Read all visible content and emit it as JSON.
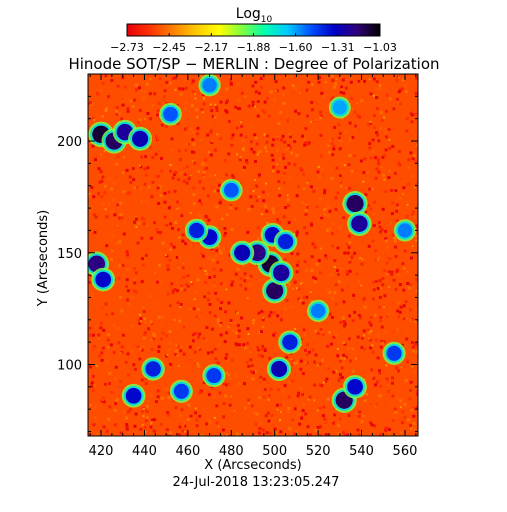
{
  "figure": {
    "title": "Hinode SOT/SP − MERLIN : Degree of Polarization",
    "timestamp": "24-Jul-2018 13:23:05.247"
  },
  "colorbar": {
    "label_base": "Log",
    "label_sub": "10",
    "ticks": [
      "−2.73",
      "−2.45",
      "−2.17",
      "−1.88",
      "−1.60",
      "−1.31",
      "−1.03"
    ],
    "range": [
      -2.73,
      -1.03
    ],
    "colormap": [
      "#e8000b",
      "#ff3300",
      "#ff8000",
      "#ffc800",
      "#ffff00",
      "#80ff40",
      "#00ffb0",
      "#00c8ff",
      "#0050ff",
      "#0000c8",
      "#30007a",
      "#000000"
    ]
  },
  "chart_data": {
    "type": "heatmap",
    "title": "Hinode SOT/SP − MERLIN : Degree of Polarization",
    "xlabel": "X (Arcseconds)",
    "ylabel": "Y (Arcseconds)",
    "xlim": [
      414,
      566
    ],
    "ylim": [
      68,
      230
    ],
    "x_ticks": [
      {
        "value": 420,
        "label": "420"
      },
      {
        "value": 440,
        "label": "440"
      },
      {
        "value": 460,
        "label": "460"
      },
      {
        "value": 480,
        "label": "480"
      },
      {
        "value": 500,
        "label": "500"
      },
      {
        "value": 520,
        "label": "520"
      },
      {
        "value": 540,
        "label": "540"
      },
      {
        "value": 560,
        "label": "560"
      }
    ],
    "y_ticks": [
      {
        "value": 100,
        "label": "100"
      },
      {
        "value": 150,
        "label": "150"
      },
      {
        "value": 200,
        "label": "200"
      }
    ],
    "value_unit": "log10 degree of polarization",
    "value_range": [
      -2.73,
      -1.03
    ],
    "background_level": -2.6,
    "high_polarization_features": [
      {
        "x": 420,
        "y": 203,
        "level": -1.1
      },
      {
        "x": 426,
        "y": 200,
        "level": -1.15
      },
      {
        "x": 431,
        "y": 204,
        "level": -1.25
      },
      {
        "x": 438,
        "y": 201,
        "level": -1.3
      },
      {
        "x": 498,
        "y": 145,
        "level": -1.1
      },
      {
        "x": 500,
        "y": 133,
        "level": -1.15
      },
      {
        "x": 503,
        "y": 141,
        "level": -1.25
      },
      {
        "x": 492,
        "y": 150,
        "level": -1.2
      },
      {
        "x": 485,
        "y": 150,
        "level": -1.3
      },
      {
        "x": 499,
        "y": 158,
        "level": -1.35
      },
      {
        "x": 505,
        "y": 155,
        "level": -1.4
      },
      {
        "x": 537,
        "y": 172,
        "level": -1.15
      },
      {
        "x": 539,
        "y": 163,
        "level": -1.25
      },
      {
        "x": 418,
        "y": 145,
        "level": -1.2
      },
      {
        "x": 421,
        "y": 138,
        "level": -1.35
      },
      {
        "x": 470,
        "y": 157,
        "level": -1.35
      },
      {
        "x": 464,
        "y": 160,
        "level": -1.4
      },
      {
        "x": 480,
        "y": 178,
        "level": -1.5
      },
      {
        "x": 532,
        "y": 84,
        "level": -1.15
      },
      {
        "x": 537,
        "y": 90,
        "level": -1.35
      },
      {
        "x": 502,
        "y": 98,
        "level": -1.3
      },
      {
        "x": 507,
        "y": 110,
        "level": -1.4
      },
      {
        "x": 435,
        "y": 86,
        "level": -1.35
      },
      {
        "x": 444,
        "y": 98,
        "level": -1.4
      },
      {
        "x": 457,
        "y": 88,
        "level": -1.45
      },
      {
        "x": 472,
        "y": 95,
        "level": -1.45
      },
      {
        "x": 520,
        "y": 124,
        "level": -1.55
      },
      {
        "x": 555,
        "y": 105,
        "level": -1.45
      },
      {
        "x": 452,
        "y": 212,
        "level": -1.5
      },
      {
        "x": 470,
        "y": 225,
        "level": -1.55
      },
      {
        "x": 530,
        "y": 215,
        "level": -1.6
      },
      {
        "x": 560,
        "y": 160,
        "level": -1.55
      }
    ]
  }
}
